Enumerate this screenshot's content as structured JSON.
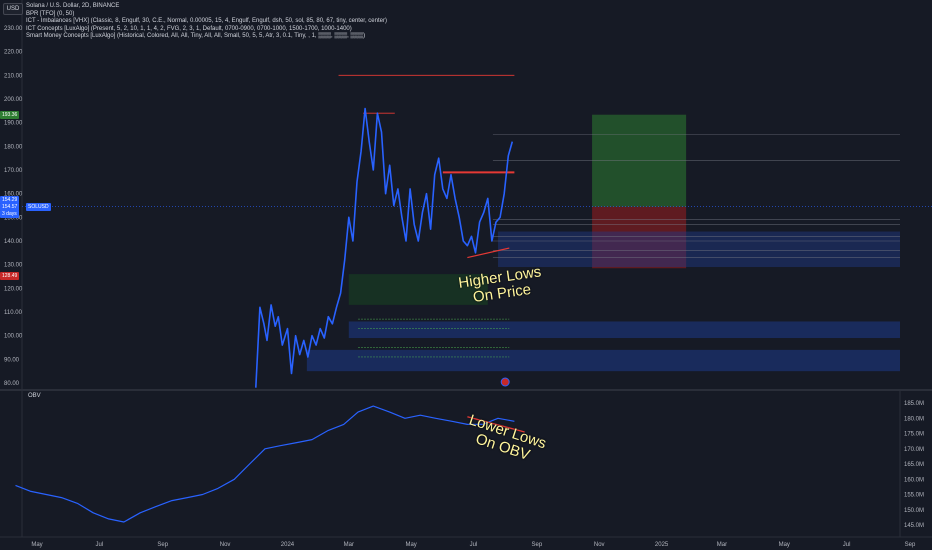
{
  "header": {
    "currency_button": "USD",
    "lines": [
      "Solana / U.S. Dollar, 2D, BINANCE",
      "BPR [TFO] (0, 50)",
      "ICT - Imbalances [VHX] (Classic, 8, Engulf, 30, C.E., Normal, 0.00005, 15, 4, Engulf, Engulf, dsh, 50, sol, 85, 80, 67, tiny, center, center)",
      "ICT Concepts [LuxAlgo] (Present, 5, 2, 10, 1, 1, 4, 2, FVG, 2, 3, 1, Default, 0700-0900, 0700-1000, 1500-1700, 1000-1400)",
      "Smart Money Concepts [LuxAlgo] (Historical, Colored, All, All, Tiny, All, All, Small, 50, 5, 5, Atr, 3, 0.1, Tiny, , 1, ▒▒▒, ▒▒▒, ▒▒▒)"
    ]
  },
  "obv_label": "OBV",
  "annotations": {
    "price": "Higher Lows\nOn Price",
    "obv": "Lower Lows\nOn OBV"
  },
  "badges": {
    "last_price": "154.57",
    "price_alt": "154.29",
    "countdown": "3 days",
    "symbol": "SOLUSD",
    "upper": "193.36",
    "lower": "128.49",
    "marker": "B"
  },
  "colors": {
    "background": "#161a25",
    "price_line": "#2962ff",
    "obv_line": "#2962ff",
    "annotation_text": "#fff59d",
    "trend_line": "#e53935",
    "profit_zone": "#2e7d32",
    "loss_zone": "#b71c1c",
    "fvg_zone": "#1e3a8a"
  },
  "chart_data": [
    {
      "type": "line",
      "title": "Solana / U.S. Dollar, 2D, BINANCE",
      "xlabel": "",
      "ylabel": "",
      "x_tick_labels": [
        "May",
        "Jul",
        "Sep",
        "Nov",
        "2024",
        "Mar",
        "May",
        "Jul",
        "Sep",
        "Nov",
        "2025",
        "Mar",
        "May",
        "Jul",
        "Sep"
      ],
      "y_ticks": [
        80,
        90,
        100,
        110,
        120,
        130,
        140,
        150,
        160,
        170,
        180,
        190,
        200,
        210,
        220,
        230
      ],
      "ylim": [
        78,
        240
      ],
      "series": [
        {
          "name": "Solana / U.S. Dollar",
          "x": [
            "2023-12-01",
            "2023-12-05",
            "2023-12-09",
            "2023-12-12",
            "2023-12-16",
            "2023-12-20",
            "2023-12-23",
            "2023-12-27",
            "2024-01-01",
            "2024-01-05",
            "2024-01-09",
            "2024-01-13",
            "2024-01-17",
            "2024-01-21",
            "2024-01-25",
            "2024-01-29",
            "2024-02-02",
            "2024-02-06",
            "2024-02-10",
            "2024-02-14",
            "2024-02-18",
            "2024-02-22",
            "2024-02-26",
            "2024-03-01",
            "2024-03-05",
            "2024-03-09",
            "2024-03-13",
            "2024-03-17",
            "2024-03-21",
            "2024-03-25",
            "2024-03-29",
            "2024-04-02",
            "2024-04-06",
            "2024-04-10",
            "2024-04-14",
            "2024-04-18",
            "2024-04-22",
            "2024-04-26",
            "2024-04-30",
            "2024-05-04",
            "2024-05-08",
            "2024-05-12",
            "2024-05-16",
            "2024-05-20",
            "2024-05-24",
            "2024-05-28",
            "2024-06-01",
            "2024-06-05",
            "2024-06-09",
            "2024-06-13",
            "2024-06-17",
            "2024-06-21",
            "2024-06-25",
            "2024-06-29",
            "2024-07-03",
            "2024-07-07",
            "2024-07-11",
            "2024-07-15",
            "2024-07-19",
            "2024-07-23",
            "2024-07-27",
            "2024-07-31",
            "2024-08-04",
            "2024-08-08"
          ],
          "values": [
            78,
            112,
            105,
            98,
            113,
            104,
            108,
            96,
            103,
            84,
            100,
            92,
            98,
            91,
            100,
            96,
            103,
            99,
            108,
            105,
            112,
            118,
            132,
            150,
            140,
            165,
            178,
            196,
            182,
            170,
            194,
            186,
            160,
            172,
            155,
            162,
            150,
            140,
            162,
            147,
            140,
            152,
            160,
            145,
            168,
            175,
            162,
            158,
            168,
            158,
            150,
            140,
            138,
            142,
            135,
            148,
            152,
            158,
            140,
            148,
            150,
            160,
            176,
            182
          ]
        }
      ]
    },
    {
      "type": "line",
      "title": "OBV",
      "y_ticks": [
        145,
        150,
        155,
        160,
        165,
        170,
        175,
        180,
        185
      ],
      "ylim": [
        143,
        188
      ],
      "series": [
        {
          "name": "OBV",
          "x": [
            "2023-04-10",
            "2023-04-25",
            "2023-05-10",
            "2023-05-25",
            "2023-06-10",
            "2023-06-25",
            "2023-07-10",
            "2023-07-25",
            "2023-08-10",
            "2023-08-25",
            "2023-09-10",
            "2023-09-25",
            "2023-10-10",
            "2023-10-25",
            "2023-11-10",
            "2023-11-25",
            "2023-12-10",
            "2023-12-25",
            "2024-01-10",
            "2024-01-25",
            "2024-02-10",
            "2024-02-25",
            "2024-03-10",
            "2024-03-25",
            "2024-04-10",
            "2024-04-25",
            "2024-05-10",
            "2024-05-25",
            "2024-06-10",
            "2024-06-25",
            "2024-07-10",
            "2024-07-25",
            "2024-08-10"
          ],
          "values": [
            158,
            156,
            155,
            154,
            152,
            149,
            147,
            146,
            149,
            151,
            153,
            154,
            155,
            157,
            160,
            165,
            170,
            171,
            172,
            173,
            176,
            178,
            182,
            184,
            182,
            180,
            181,
            180,
            179,
            178,
            178,
            180,
            179
          ]
        }
      ]
    }
  ]
}
